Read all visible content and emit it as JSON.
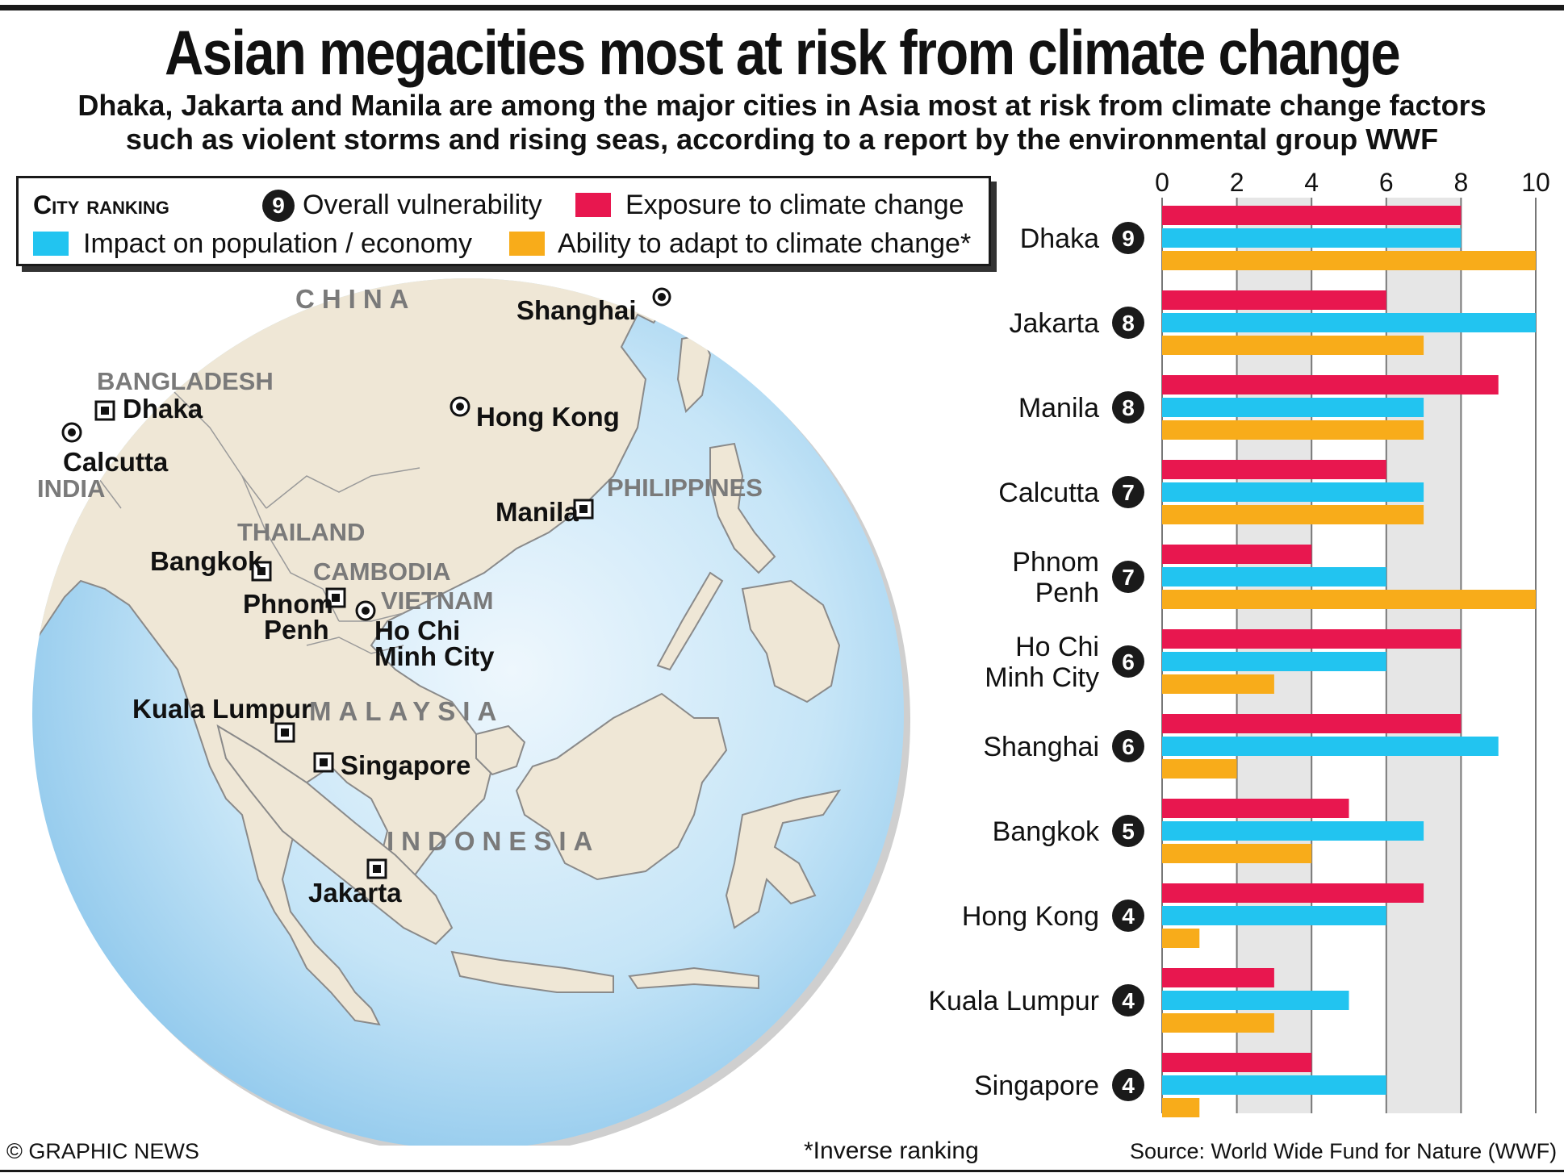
{
  "title": "Asian megacities most at risk from climate change",
  "subtitle_line1": "Dhaka, Jakarta and Manila are among the major cities in Asia most at risk from climate change factors",
  "subtitle_line2": "such as violent storms and rising seas, according to a report by the environmental group WWF",
  "legend": {
    "heading": "City ranking",
    "badge_example": "9",
    "overall": "Overall vulnerability",
    "exposure": "Exposure to climate change",
    "impact": "Impact on population / economy",
    "adapt": "Ability to adapt to climate change*"
  },
  "colors": {
    "exposure": "#e8174f",
    "impact": "#22c4f0",
    "adapt": "#f8ac1a",
    "ocean": "#a9d6f1",
    "land": "#efe7d6",
    "grid_band": "#e6e6e6"
  },
  "map": {
    "countries": {
      "china": "CHINA",
      "bangladesh": "BANGLADESH",
      "india": "INDIA",
      "thailand": "THAILAND",
      "cambodia": "CAMBODIA",
      "vietnam": "VIETNAM",
      "philippines": "PHILIPPINES",
      "malaysia": "MALAYSIA",
      "indonesia": "INDONESIA"
    },
    "cities": {
      "shanghai": "Shanghai",
      "dhaka": "Dhaka",
      "calcutta": "Calcutta",
      "hong_kong": "Hong Kong",
      "manila": "Manila",
      "bangkok": "Bangkok",
      "phnom_penh_1": "Phnom",
      "phnom_penh_2": "Penh",
      "hcmc_1": "Ho Chi",
      "hcmc_2": "Minh City",
      "kuala_lumpur": "Kuala Lumpur",
      "singapore": "Singapore",
      "jakarta": "Jakarta"
    }
  },
  "chart_data": {
    "type": "bar",
    "orientation": "horizontal",
    "xlim": [
      0,
      10
    ],
    "ticks": [
      0,
      2,
      4,
      6,
      8,
      10
    ],
    "categories": [
      {
        "lines": [
          "Dhaka"
        ],
        "rank": 9
      },
      {
        "lines": [
          "Jakarta"
        ],
        "rank": 8
      },
      {
        "lines": [
          "Manila"
        ],
        "rank": 8
      },
      {
        "lines": [
          "Calcutta"
        ],
        "rank": 7
      },
      {
        "lines": [
          "Phnom",
          "Penh"
        ],
        "rank": 7
      },
      {
        "lines": [
          "Ho Chi",
          "Minh City"
        ],
        "rank": 6
      },
      {
        "lines": [
          "Shanghai"
        ],
        "rank": 6
      },
      {
        "lines": [
          "Bangkok"
        ],
        "rank": 5
      },
      {
        "lines": [
          "Hong Kong"
        ],
        "rank": 4
      },
      {
        "lines": [
          "Kuala Lumpur"
        ],
        "rank": 4
      },
      {
        "lines": [
          "Singapore"
        ],
        "rank": 4
      }
    ],
    "series": [
      {
        "name": "Exposure to climate change",
        "values": [
          8,
          6,
          9,
          6,
          4,
          8,
          8,
          5,
          7,
          3,
          4
        ]
      },
      {
        "name": "Impact on population / economy",
        "values": [
          8,
          10,
          7,
          7,
          6,
          6,
          9,
          7,
          6,
          5,
          6
        ]
      },
      {
        "name": "Ability to adapt to climate change*",
        "values": [
          10,
          7,
          7,
          7,
          10,
          3,
          2,
          4,
          1,
          3,
          1
        ]
      }
    ]
  },
  "footer": {
    "credit": "© GRAPHIC NEWS",
    "note": "*Inverse ranking",
    "source": "Source: World Wide Fund for Nature (WWF)"
  }
}
